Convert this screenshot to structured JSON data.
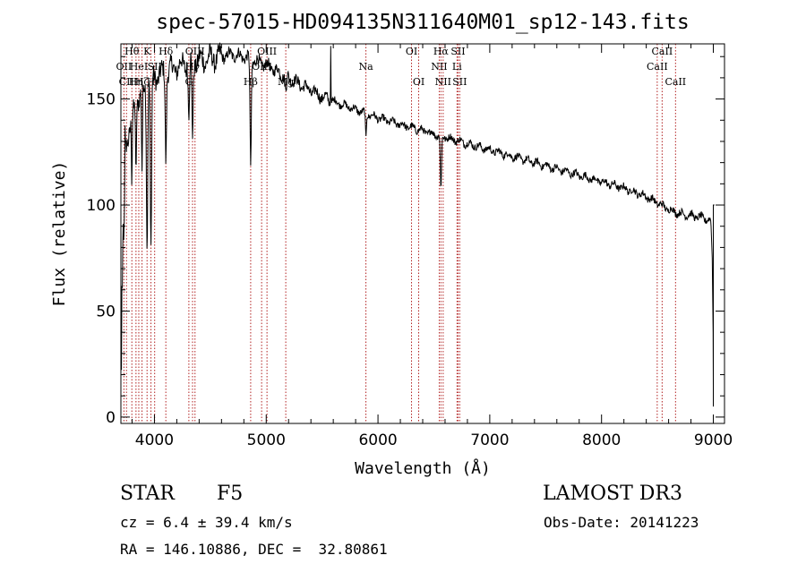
{
  "chart_data": {
    "type": "line",
    "title": "spec-57015-HD094135N311640M01_sp12-143.fits",
    "xlabel": "Wavelength (Å)",
    "ylabel": "Flux (relative)",
    "xlim": [
      3700,
      9100
    ],
    "ylim": [
      -3,
      176
    ],
    "xticks": [
      4000,
      5000,
      6000,
      7000,
      8000,
      9000
    ],
    "yticks": [
      0,
      50,
      100,
      150
    ],
    "grid": false,
    "legend": "none",
    "continuum": {
      "x": [
        3700,
        3750,
        3800,
        3850,
        3900,
        3950,
        4000,
        4100,
        4200,
        4300,
        4400,
        4500,
        4600,
        4700,
        4800,
        4900,
        5000,
        5100,
        5200,
        5300,
        5400,
        5500,
        5600,
        5700,
        5800,
        5900,
        6000,
        6200,
        6400,
        6600,
        6800,
        7000,
        7200,
        7400,
        7600,
        7800,
        8000,
        8200,
        8400,
        8500,
        8600,
        8700,
        8800,
        8900,
        8960,
        9000
      ],
      "y": [
        105,
        130,
        140,
        150,
        155,
        158,
        160,
        163,
        165,
        167,
        168,
        169,
        170,
        171,
        170,
        168,
        166,
        163,
        160,
        157,
        154,
        151,
        149,
        147,
        145,
        143,
        141,
        138,
        135,
        132,
        129,
        126,
        123,
        120,
        117,
        114,
        111,
        108,
        104,
        101,
        98,
        96,
        95,
        94,
        93,
        90
      ]
    },
    "absorption_lines": [
      {
        "x": 3934,
        "depth": 75,
        "width": 8
      },
      {
        "x": 3969,
        "depth": 80,
        "width": 8
      },
      {
        "x": 3889,
        "depth": 40,
        "width": 6
      },
      {
        "x": 3835,
        "depth": 35,
        "width": 5
      },
      {
        "x": 3798,
        "depth": 30,
        "width": 5
      },
      {
        "x": 4102,
        "depth": 40,
        "width": 8
      },
      {
        "x": 4308,
        "depth": 25,
        "width": 8
      },
      {
        "x": 4341,
        "depth": 35,
        "width": 8
      },
      {
        "x": 4861,
        "depth": 50,
        "width": 8
      },
      {
        "x": 5175,
        "depth": 8,
        "width": 10
      },
      {
        "x": 5892,
        "depth": 12,
        "width": 6
      },
      {
        "x": 6563,
        "depth": 25,
        "width": 8
      }
    ],
    "spectrum_end": {
      "x": [
        8980,
        8990,
        8998,
        9000,
        9000,
        9000,
        9010
      ],
      "y": [
        90,
        75,
        40,
        15,
        5,
        100,
        100
      ]
    },
    "spike": {
      "x": 5577,
      "y": 175
    },
    "line_markers": [
      {
        "x": 3727,
        "label": "OII",
        "row": 2
      },
      {
        "x": 3750,
        "label": "CII",
        "row": 3
      },
      {
        "x": 3798,
        "label": "Hθ",
        "row": 1
      },
      {
        "x": 3835,
        "label": "Hη",
        "row": 3
      },
      {
        "x": 3860,
        "label": "HeI",
        "row": 2
      },
      {
        "x": 3889,
        "label": "Hζ",
        "row": 3
      },
      {
        "x": 3934,
        "label": "K",
        "row": 1
      },
      {
        "x": 3969,
        "label": "H",
        "row": 3
      },
      {
        "x": 4002,
        "label": "SII",
        "row": 2
      },
      {
        "x": 4102,
        "label": "Hδ",
        "row": 1
      },
      {
        "x": 4308,
        "label": "G",
        "row": 3
      },
      {
        "x": 4341,
        "label": "Hγ",
        "row": 2
      },
      {
        "x": 4363,
        "label": "OIII",
        "row": 1
      },
      {
        "x": 4861,
        "label": "Hβ",
        "row": 3
      },
      {
        "x": 4959,
        "label": "OIII",
        "row": 2
      },
      {
        "x": 5007,
        "label": "OIII",
        "row": 1
      },
      {
        "x": 5175,
        "label": "Mg",
        "row": 3
      },
      {
        "x": 5892,
        "label": "Na",
        "row": 2
      },
      {
        "x": 6300,
        "label": "OI",
        "row": 1
      },
      {
        "x": 6364,
        "label": "OI",
        "row": 3
      },
      {
        "x": 6548,
        "label": "NII",
        "row": 2
      },
      {
        "x": 6563,
        "label": "Hα",
        "row": 1
      },
      {
        "x": 6583,
        "label": "NII",
        "row": 3
      },
      {
        "x": 6707,
        "label": "Li",
        "row": 2
      },
      {
        "x": 6716,
        "label": "SII",
        "row": 1
      },
      {
        "x": 6731,
        "label": "SII",
        "row": 3
      },
      {
        "x": 8498,
        "label": "CaII",
        "row": 2
      },
      {
        "x": 8542,
        "label": "CaII",
        "row": 1
      },
      {
        "x": 8662,
        "label": "CaII",
        "row": 3
      }
    ]
  },
  "info": {
    "object_class": "STAR",
    "subclass": "F5",
    "survey": "LAMOST DR3",
    "redshift_text": "cz = 6.4 ± 39.4 km/s",
    "coords_text": "RA = 146.10886, DEC =  32.80861",
    "obs_date_text": "Obs-Date: 20141223"
  }
}
